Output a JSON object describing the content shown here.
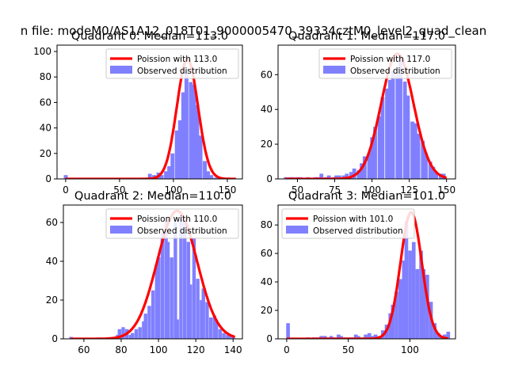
{
  "figure_title": "n file: modeM0/AS1A12_018T01_9000005470_39334cztM0_level2_quad_clean",
  "colors": {
    "poisson": "#ff0000",
    "hist": "#8080ff"
  },
  "chart_data": [
    {
      "type": "bar+line",
      "title": "Quadrant 0: Median=113.0",
      "median": 113.0,
      "legend": {
        "line_label": "Poission with 113.0",
        "hist_label": "Observed distribution",
        "loc": "upper right"
      },
      "xlim": [
        -8,
        164
      ],
      "ylim": [
        0,
        105
      ],
      "xticks": [
        0,
        50,
        100,
        150
      ],
      "yticks": [
        0,
        20,
        40,
        60,
        80,
        100
      ],
      "bin_width": 3.4,
      "hist": [
        [
          0,
          3
        ],
        [
          71,
          1
        ],
        [
          78,
          4
        ],
        [
          82,
          3
        ],
        [
          86,
          5
        ],
        [
          89,
          3
        ],
        [
          93,
          6
        ],
        [
          96,
          10
        ],
        [
          99,
          20
        ],
        [
          103,
          38
        ],
        [
          106,
          46
        ],
        [
          109,
          68
        ],
        [
          112,
          85
        ],
        [
          116,
          76
        ],
        [
          119,
          74
        ],
        [
          122,
          58
        ],
        [
          125,
          34
        ],
        [
          129,
          14
        ],
        [
          132,
          6
        ],
        [
          135,
          3
        ],
        [
          139,
          1
        ]
      ],
      "curve": {
        "amp": 94,
        "sigma": 9.8,
        "x_range": [
          0,
          158
        ]
      }
    },
    {
      "type": "bar+line",
      "title": "Quadrant 1: Median=117.0",
      "median": 117.0,
      "legend": {
        "line_label": "Poission with 117.0",
        "hist_label": "Observed distribution",
        "loc": "upper right"
      },
      "xlim": [
        37,
        156
      ],
      "ylim": [
        0,
        77
      ],
      "xticks": [
        50,
        75,
        100,
        125,
        150
      ],
      "yticks": [
        0,
        20,
        40,
        60
      ],
      "bin_width": 2.4,
      "hist": [
        [
          42,
          1
        ],
        [
          45,
          1
        ],
        [
          47,
          1
        ],
        [
          50,
          1
        ],
        [
          52,
          1
        ],
        [
          57,
          1
        ],
        [
          62,
          1
        ],
        [
          64,
          1
        ],
        [
          66,
          3
        ],
        [
          69,
          1
        ],
        [
          71,
          2
        ],
        [
          74,
          1
        ],
        [
          76,
          2
        ],
        [
          78,
          2
        ],
        [
          81,
          2
        ],
        [
          83,
          3
        ],
        [
          86,
          4
        ],
        [
          88,
          6
        ],
        [
          91,
          5
        ],
        [
          93,
          9
        ],
        [
          95,
          13
        ],
        [
          98,
          15
        ],
        [
          100,
          24
        ],
        [
          102,
          30
        ],
        [
          105,
          36
        ],
        [
          107,
          47
        ],
        [
          110,
          52
        ],
        [
          112,
          57
        ],
        [
          114,
          62
        ],
        [
          117,
          60
        ],
        [
          119,
          70
        ],
        [
          122,
          56
        ],
        [
          124,
          48
        ],
        [
          127,
          33
        ],
        [
          129,
          32
        ],
        [
          131,
          26
        ],
        [
          134,
          22
        ],
        [
          136,
          15
        ],
        [
          139,
          10
        ],
        [
          141,
          7
        ],
        [
          143,
          4
        ],
        [
          146,
          3
        ],
        [
          148,
          3
        ]
      ],
      "curve": {
        "amp": 72,
        "sigma": 10.8,
        "x_range": [
          42,
          150
        ]
      }
    },
    {
      "type": "bar+line",
      "title": "Quadrant 2: Median=110.0",
      "median": 110.0,
      "legend": {
        "line_label": "Poission with 110.0",
        "hist_label": "Observed distribution",
        "loc": "upper right"
      },
      "xlim": [
        49,
        145
      ],
      "ylim": [
        0,
        69
      ],
      "xticks": [
        60,
        80,
        100,
        120,
        140
      ],
      "yticks": [
        0,
        20,
        40,
        60
      ],
      "bin_width": 1.75,
      "hist": [
        [
          53,
          1
        ],
        [
          76,
          1
        ],
        [
          78,
          2
        ],
        [
          79,
          5
        ],
        [
          81,
          6
        ],
        [
          83,
          5
        ],
        [
          85,
          2
        ],
        [
          86,
          3
        ],
        [
          88,
          5
        ],
        [
          90,
          6
        ],
        [
          92,
          9
        ],
        [
          93,
          13
        ],
        [
          95,
          17
        ],
        [
          97,
          25
        ],
        [
          99,
          38
        ],
        [
          100,
          42
        ],
        [
          102,
          55
        ],
        [
          104,
          61
        ],
        [
          105,
          50
        ],
        [
          107,
          42
        ],
        [
          109,
          62
        ],
        [
          110,
          10
        ],
        [
          112,
          62
        ],
        [
          114,
          61
        ],
        [
          116,
          50
        ],
        [
          117,
          28
        ],
        [
          119,
          52
        ],
        [
          121,
          31
        ],
        [
          123,
          20
        ],
        [
          124,
          26
        ],
        [
          126,
          19
        ],
        [
          128,
          11
        ],
        [
          130,
          12
        ],
        [
          131,
          9
        ],
        [
          133,
          5
        ],
        [
          135,
          3
        ],
        [
          137,
          2
        ],
        [
          138,
          2
        ],
        [
          140,
          1
        ]
      ],
      "curve": {
        "amp": 66,
        "sigma": 10.7,
        "x_range": [
          53,
          141
        ]
      }
    },
    {
      "type": "bar+line",
      "title": "Quadrant 3: Median=101.0",
      "median": 101.0,
      "legend": {
        "line_label": "Poission with 101.0",
        "hist_label": "Observed distribution",
        "loc": "upper left"
      },
      "xlim": [
        -7,
        137
      ],
      "ylim": [
        0,
        94
      ],
      "xticks": [
        0,
        50,
        100
      ],
      "yticks": [
        0,
        20,
        40,
        60,
        80
      ],
      "bin_width": 2.8,
      "hist": [
        [
          1,
          11
        ],
        [
          17,
          1
        ],
        [
          22,
          1
        ],
        [
          25,
          1
        ],
        [
          28,
          2
        ],
        [
          31,
          2
        ],
        [
          33,
          1
        ],
        [
          36,
          2
        ],
        [
          39,
          1
        ],
        [
          42,
          3
        ],
        [
          44,
          2
        ],
        [
          47,
          1
        ],
        [
          50,
          1
        ],
        [
          53,
          1
        ],
        [
          56,
          3
        ],
        [
          58,
          2
        ],
        [
          61,
          1
        ],
        [
          64,
          3
        ],
        [
          67,
          4
        ],
        [
          70,
          2
        ],
        [
          72,
          3
        ],
        [
          75,
          2
        ],
        [
          78,
          6
        ],
        [
          81,
          10
        ],
        [
          84,
          18
        ],
        [
          86,
          24
        ],
        [
          89,
          33
        ],
        [
          92,
          42
        ],
        [
          95,
          55
        ],
        [
          97,
          83
        ],
        [
          100,
          62
        ],
        [
          103,
          68
        ],
        [
          106,
          49
        ],
        [
          109,
          62
        ],
        [
          111,
          49
        ],
        [
          114,
          45
        ],
        [
          117,
          26
        ],
        [
          120,
          11
        ],
        [
          123,
          4
        ],
        [
          125,
          1
        ],
        [
          128,
          3
        ],
        [
          131,
          5
        ]
      ],
      "curve": {
        "amp": 89,
        "sigma": 8.6,
        "x_range": [
          0,
          131
        ]
      }
    }
  ]
}
